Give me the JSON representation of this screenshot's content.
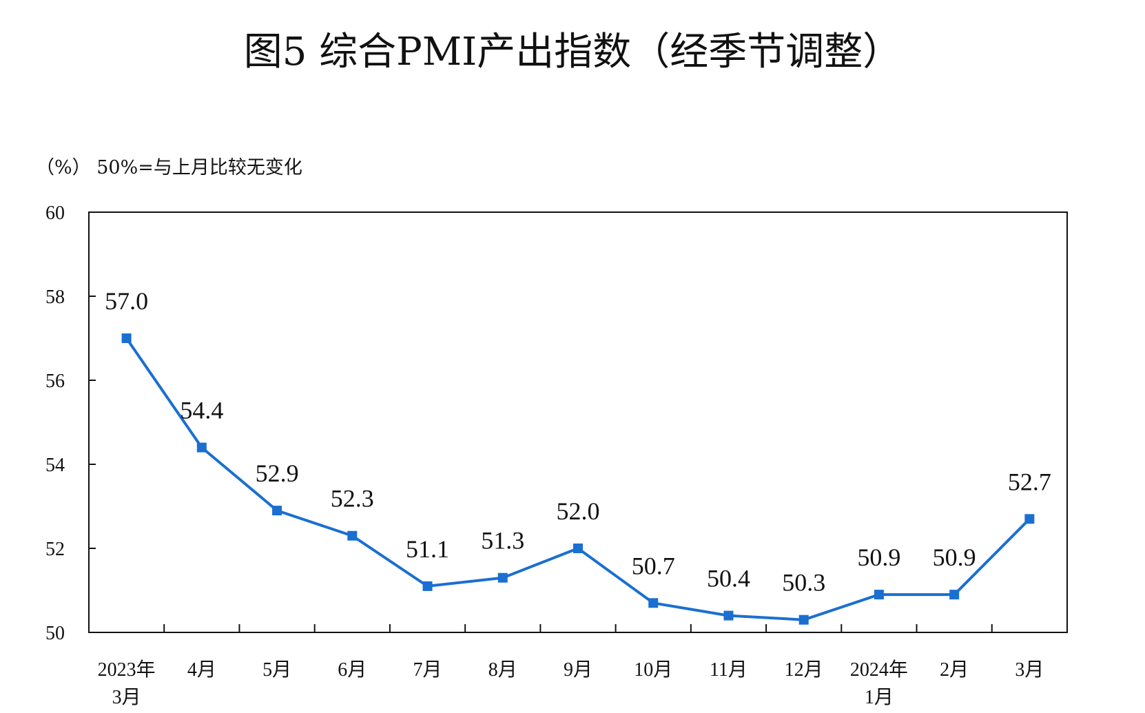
{
  "chart_data": {
    "type": "line",
    "title": "图5  综合PMI产出指数（经季节调整）",
    "unit_note": "（%）  50%=与上月比较无变化",
    "categories": [
      [
        "2023年",
        "3月"
      ],
      [
        "4月"
      ],
      [
        "5月"
      ],
      [
        "6月"
      ],
      [
        "7月"
      ],
      [
        "8月"
      ],
      [
        "9月"
      ],
      [
        "10月"
      ],
      [
        "11月"
      ],
      [
        "12月"
      ],
      [
        "2024年",
        "1月"
      ],
      [
        "2月"
      ],
      [
        "3月"
      ]
    ],
    "values": [
      57.0,
      54.4,
      52.9,
      52.3,
      51.1,
      51.3,
      52.0,
      50.7,
      50.4,
      50.3,
      50.9,
      50.9,
      52.7
    ],
    "data_labels": [
      "57.0",
      "54.4",
      "52.9",
      "52.3",
      "51.1",
      "51.3",
      "52.0",
      "50.7",
      "50.4",
      "50.3",
      "50.9",
      "50.9",
      "52.7"
    ],
    "ylim": [
      50,
      60
    ],
    "yticks": [
      "50",
      "52",
      "54",
      "56",
      "58",
      "60"
    ],
    "grid": false,
    "legend": "none",
    "line_color": "#1a6fd1",
    "marker": "square"
  }
}
